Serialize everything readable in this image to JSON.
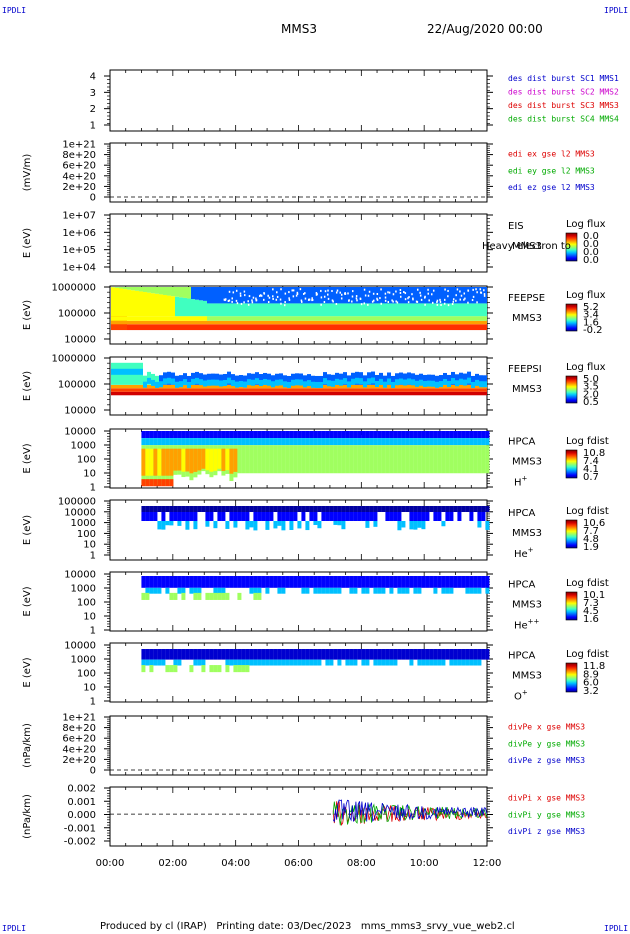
{
  "corner_label": "IPDLI",
  "header": {
    "spacecraft": "MMS3",
    "datetime": "22/Aug/2020 00:00"
  },
  "footer": {
    "producer": "Produced by cl (IRAP)",
    "printing_date": "Printing date: 03/Dec/2023",
    "script": "mms_mms3_srvy_vue_web2.cl"
  },
  "chart_data": {
    "type": "heatmap",
    "x_axis": {
      "ticks": [
        "00:00",
        "02:00",
        "04:00",
        "06:00",
        "08:00",
        "10:00",
        "12:00"
      ],
      "range_hours": [
        0,
        12
      ]
    },
    "panels": [
      {
        "id": "des-dist",
        "type": "line",
        "ylabel": "",
        "yticks": [
          "4",
          "3",
          "2",
          "1"
        ],
        "ylim": [
          0.5,
          4.5
        ],
        "legend": [
          {
            "text": "des dist burst SC1 MMS1",
            "color": "#0000cc"
          },
          {
            "text": "des dist burst SC2 MMS2",
            "color": "#cc00cc"
          },
          {
            "text": "des dist burst SC3 MMS3",
            "color": "#dd0000"
          },
          {
            "text": "des dist burst SC4 MMS4",
            "color": "#00aa00"
          }
        ]
      },
      {
        "id": "edi-e",
        "type": "line",
        "ylabel": "(mV/m)",
        "yticks": [
          "1e+21",
          "8e+20",
          "6e+20",
          "4e+20",
          "2e+20",
          "0"
        ],
        "ylim": [
          0,
          1e+21
        ],
        "zero_line": true,
        "legend": [
          {
            "text": "edi ex gse l2 MMS3",
            "color": "#dd0000"
          },
          {
            "text": "edi ey gse l2 MMS3",
            "color": "#00aa00"
          },
          {
            "text": "edi ez gse l2 MMS3",
            "color": "#0000cc"
          }
        ]
      },
      {
        "id": "eis",
        "type": "heatmap",
        "ylabel": "E (eV)",
        "yticks": [
          "1e+07",
          "1e+06",
          "1e+05",
          "1e+04"
        ],
        "ylim": [
          10000.0,
          10000000.0
        ],
        "yscale": "log",
        "instrument": "EIS",
        "spacecraft": "MMS3",
        "overlay_text": "Heavy electron to",
        "colorbar": {
          "title": "Log flux",
          "ticks": [
            "0.0",
            "0.0",
            "0.0",
            "0.0"
          ]
        },
        "data": "none"
      },
      {
        "id": "feeps-e",
        "type": "heatmap",
        "ylabel": "E (eV)",
        "yticks": [
          "1000000",
          "100000",
          "10000"
        ],
        "ylim": [
          10000.0,
          1000000.0
        ],
        "yscale": "log",
        "instrument": "FEEPSE",
        "spacecraft": "MMS3",
        "colorbar": {
          "title": "Log flux",
          "ticks": [
            "5.2",
            "3.4",
            "1.6",
            "-0.2"
          ]
        },
        "data_start_hour": 0,
        "data_end_hour": 12
      },
      {
        "id": "feeps-i",
        "type": "heatmap",
        "ylabel": "E (eV)",
        "yticks": [
          "1000000",
          "100000",
          "10000"
        ],
        "ylim": [
          10000.0,
          1000000.0
        ],
        "yscale": "log",
        "instrument": "FEEPSI",
        "spacecraft": "MMS3",
        "colorbar": {
          "title": "Log flux",
          "ticks": [
            "5.0",
            "3.5",
            "2.0",
            "0.5"
          ]
        },
        "data_start_hour": 0,
        "data_end_hour": 12
      },
      {
        "id": "hpca-h",
        "type": "heatmap",
        "ylabel": "E (eV)",
        "yticks": [
          "10000",
          "1000",
          "100",
          "10",
          "1"
        ],
        "ylim": [
          1,
          30000
        ],
        "yscale": "log",
        "instrument": "HPCA",
        "spacecraft": "MMS3",
        "species": "H",
        "species_charge": "+",
        "colorbar": {
          "title": "Log fdist",
          "ticks": [
            "10.8",
            "7.4",
            "4.1",
            "0.7"
          ]
        },
        "data_start_hour": 1.0,
        "data_end_hour": 12
      },
      {
        "id": "hpca-he1",
        "type": "heatmap",
        "ylabel": "E (eV)",
        "yticks": [
          "100000",
          "10000",
          "1000",
          "100",
          "10",
          "1"
        ],
        "ylim": [
          1,
          100000
        ],
        "yscale": "log",
        "instrument": "HPCA",
        "spacecraft": "MMS3",
        "species": "He",
        "species_charge": "+",
        "colorbar": {
          "title": "Log fdist",
          "ticks": [
            "10.6",
            "7.7",
            "4.8",
            "1.9"
          ]
        },
        "data_start_hour": 1.0,
        "data_end_hour": 12
      },
      {
        "id": "hpca-he2",
        "type": "heatmap",
        "ylabel": "E (eV)",
        "yticks": [
          "10000",
          "1000",
          "100",
          "10",
          "1"
        ],
        "ylim": [
          1,
          30000
        ],
        "yscale": "log",
        "instrument": "HPCA",
        "spacecraft": "MMS3",
        "species": "He",
        "species_charge": "++",
        "colorbar": {
          "title": "Log fdist",
          "ticks": [
            "10.1",
            "7.3",
            "4.5",
            "1.6"
          ]
        },
        "data_start_hour": 1.0,
        "data_end_hour": 12
      },
      {
        "id": "hpca-o",
        "type": "heatmap",
        "ylabel": "E (eV)",
        "yticks": [
          "10000",
          "1000",
          "100",
          "10",
          "1"
        ],
        "ylim": [
          1,
          30000
        ],
        "yscale": "log",
        "instrument": "HPCA",
        "spacecraft": "MMS3",
        "species": "O",
        "species_charge": "+",
        "colorbar": {
          "title": "Log fdist",
          "ticks": [
            "11.8",
            "8.9",
            "6.0",
            "3.2"
          ]
        },
        "data_start_hour": 1.0,
        "data_end_hour": 12
      },
      {
        "id": "divpe",
        "type": "line",
        "ylabel": "(nPa/km)",
        "yticks": [
          "1e+21",
          "8e+20",
          "6e+20",
          "4e+20",
          "2e+20",
          "0"
        ],
        "ylim": [
          0,
          1e+21
        ],
        "zero_line": true,
        "legend": [
          {
            "text": "divPe x gse MMS3",
            "color": "#dd0000"
          },
          {
            "text": "divPe y gse MMS3",
            "color": "#00aa00"
          },
          {
            "text": "divPe z gse MMS3",
            "color": "#0000cc"
          }
        ]
      },
      {
        "id": "divpi",
        "type": "line",
        "ylabel": "(nPa/km)",
        "yticks": [
          "0.002",
          "0.001",
          "0.000",
          "-0.001",
          "-0.002"
        ],
        "ylim": [
          -0.0027,
          0.0023
        ],
        "zero_line": true,
        "data_start_hour": 7.1,
        "data_end_hour": 12,
        "legend": [
          {
            "text": "divPi x gse MMS3",
            "color": "#dd0000"
          },
          {
            "text": "divPi y gse MMS3",
            "color": "#00aa00"
          },
          {
            "text": "divPi z gse MMS3",
            "color": "#0000cc"
          }
        ]
      }
    ]
  }
}
